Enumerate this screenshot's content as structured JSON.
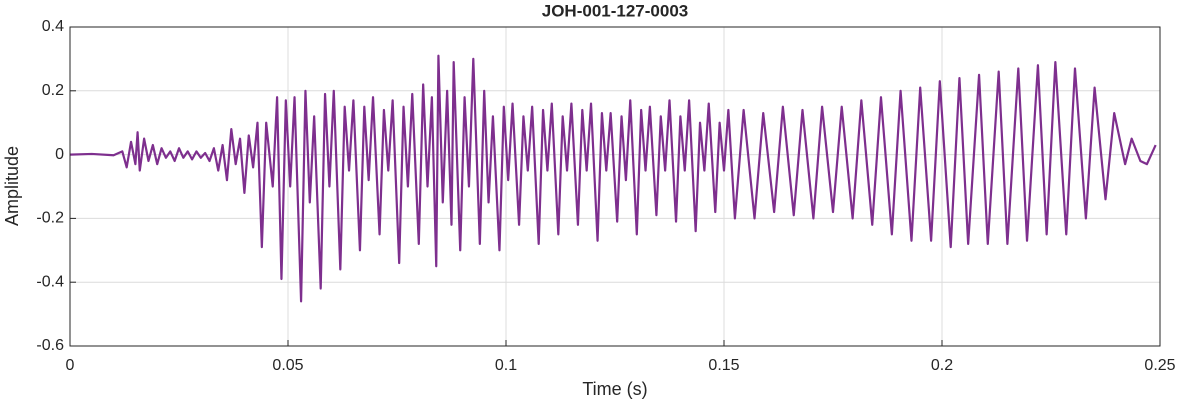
{
  "chart_data": {
    "type": "line",
    "title": "JOH-001-127-0003",
    "xlabel": "Time (s)",
    "ylabel": "Amplitude",
    "x": [
      0,
      0.005,
      0.01,
      0.012,
      0.013,
      0.014,
      0.015,
      0.0155,
      0.016,
      0.017,
      0.018,
      0.019,
      0.02,
      0.021,
      0.022,
      0.023,
      0.024,
      0.025,
      0.026,
      0.027,
      0.028,
      0.029,
      0.03,
      0.031,
      0.032,
      0.033,
      0.034,
      0.035,
      0.036,
      0.037,
      0.038,
      0.039,
      0.04,
      0.041,
      0.042,
      0.043,
      0.044,
      0.045,
      0.0465,
      0.0475,
      0.0485,
      0.0495,
      0.0505,
      0.0515,
      0.053,
      0.054,
      0.055,
      0.056,
      0.0575,
      0.0585,
      0.0595,
      0.0605,
      0.062,
      0.063,
      0.064,
      0.065,
      0.0665,
      0.0675,
      0.0685,
      0.0695,
      0.071,
      0.072,
      0.073,
      0.074,
      0.0755,
      0.0765,
      0.0775,
      0.0785,
      0.08,
      0.081,
      0.082,
      0.083,
      0.084,
      0.0845,
      0.0855,
      0.0865,
      0.0875,
      0.088,
      0.0895,
      0.0905,
      0.0915,
      0.0925,
      0.094,
      0.095,
      0.096,
      0.097,
      0.0985,
      0.0995,
      0.1005,
      0.1015,
      0.103,
      0.104,
      0.105,
      0.106,
      0.1075,
      0.1085,
      0.1095,
      0.1105,
      0.112,
      0.113,
      0.114,
      0.115,
      0.1165,
      0.1175,
      0.1185,
      0.1195,
      0.121,
      0.122,
      0.123,
      0.124,
      0.1255,
      0.1265,
      0.1275,
      0.1285,
      0.13,
      0.131,
      0.132,
      0.133,
      0.1345,
      0.1355,
      0.1365,
      0.1375,
      0.139,
      0.14,
      0.141,
      0.142,
      0.1435,
      0.1445,
      0.1455,
      0.1465,
      0.148,
      0.149,
      0.15,
      0.151,
      0.1525,
      0.1545,
      0.157,
      0.159,
      0.1615,
      0.1635,
      0.166,
      0.168,
      0.1705,
      0.1725,
      0.175,
      0.177,
      0.1795,
      0.1815,
      0.184,
      0.186,
      0.1885,
      0.1905,
      0.193,
      0.195,
      0.1975,
      0.1995,
      0.202,
      0.204,
      0.206,
      0.2085,
      0.2105,
      0.213,
      0.215,
      0.2175,
      0.2195,
      0.222,
      0.224,
      0.226,
      0.2285,
      0.2305,
      0.233,
      0.235,
      0.2375,
      0.2395,
      0.242,
      0.2435,
      0.2455,
      0.247,
      0.249
    ],
    "series": [
      {
        "name": "Amplitude",
        "color": "#7e2f8e",
        "values": [
          0,
          0.002,
          -0.002,
          0.01,
          -0.04,
          0.04,
          -0.03,
          0.07,
          -0.05,
          0.05,
          -0.02,
          0.03,
          -0.03,
          0.02,
          -0.01,
          0.01,
          -0.02,
          0.02,
          -0.01,
          0.01,
          -0.015,
          0.01,
          -0.01,
          0.005,
          -0.02,
          0.02,
          -0.05,
          0.03,
          -0.08,
          0.08,
          -0.03,
          0.05,
          -0.12,
          0.06,
          -0.04,
          0.1,
          -0.29,
          0.1,
          -0.1,
          0.18,
          -0.39,
          0.17,
          -0.1,
          0.18,
          -0.46,
          0.2,
          -0.15,
          0.12,
          -0.42,
          0.19,
          -0.1,
          0.2,
          -0.36,
          0.15,
          -0.05,
          0.17,
          -0.3,
          0.15,
          -0.08,
          0.18,
          -0.25,
          0.14,
          -0.05,
          0.17,
          -0.34,
          0.15,
          -0.1,
          0.19,
          -0.28,
          0.22,
          -0.1,
          0.18,
          -0.35,
          0.31,
          -0.15,
          0.2,
          -0.22,
          0.29,
          -0.3,
          0.18,
          -0.1,
          0.3,
          -0.28,
          0.2,
          -0.15,
          0.12,
          -0.3,
          0.15,
          -0.08,
          0.16,
          -0.22,
          0.12,
          -0.05,
          0.15,
          -0.28,
          0.14,
          -0.05,
          0.16,
          -0.25,
          0.12,
          -0.05,
          0.16,
          -0.22,
          0.14,
          -0.05,
          0.16,
          -0.27,
          0.13,
          -0.05,
          0.13,
          -0.21,
          0.12,
          -0.08,
          0.17,
          -0.25,
          0.14,
          -0.05,
          0.15,
          -0.19,
          0.12,
          -0.05,
          0.17,
          -0.21,
          0.12,
          -0.05,
          0.17,
          -0.24,
          0.1,
          -0.05,
          0.16,
          -0.18,
          0.1,
          -0.05,
          0.14,
          -0.2,
          0.14,
          -0.2,
          0.13,
          -0.18,
          0.15,
          -0.19,
          0.14,
          -0.2,
          0.15,
          -0.18,
          0.15,
          -0.2,
          0.17,
          -0.22,
          0.18,
          -0.25,
          0.2,
          -0.27,
          0.21,
          -0.27,
          0.23,
          -0.29,
          0.24,
          -0.28,
          0.25,
          -0.28,
          0.26,
          -0.28,
          0.27,
          -0.27,
          0.28,
          -0.25,
          0.29,
          -0.25,
          0.27,
          -0.2,
          0.21,
          -0.14,
          0.13,
          -0.03,
          0.05,
          -0.02,
          -0.03,
          0.03
        ]
      }
    ],
    "xlim": [
      0,
      0.25
    ],
    "xticks": [
      0,
      0.05,
      0.1,
      0.15,
      0.2,
      0.25
    ],
    "ylim": [
      -0.6,
      0.4
    ],
    "yticks": [
      -0.6,
      -0.4,
      -0.2,
      0,
      0.2,
      0.4
    ],
    "grid": true
  }
}
